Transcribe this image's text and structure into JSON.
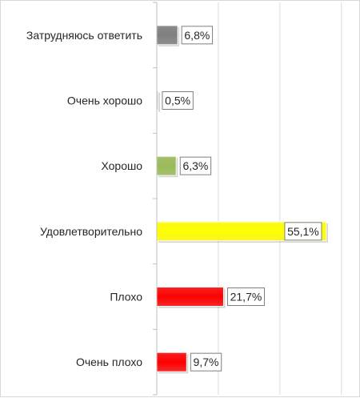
{
  "chart_data": {
    "type": "bar",
    "orientation": "horizontal",
    "categories": [
      "Затрудняюсь ответить",
      "Очень хорошо",
      "Хорошо",
      "Удовлетворительно",
      "Плохо",
      "Очень плохо"
    ],
    "values": [
      6.8,
      0.5,
      6.3,
      55.1,
      21.7,
      9.7
    ],
    "data_labels": [
      "6,8%",
      "0,5%",
      "6,3%",
      "55,1%",
      "21,7%",
      "9,7%"
    ],
    "colors": [
      "#7f7f7f",
      "#c8c8c8",
      "#9bbb59",
      "#ffff00",
      "#ff0000",
      "#ff0000"
    ],
    "xlim": [
      0,
      65
    ],
    "grid": true,
    "legend": "none",
    "title": "",
    "xlabel": "",
    "ylabel": ""
  }
}
